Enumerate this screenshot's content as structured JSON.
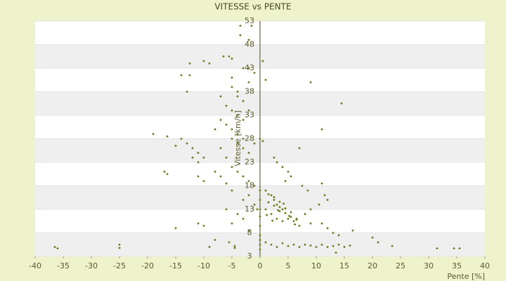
{
  "chart_data": {
    "type": "scatter",
    "title": "VITESSE vs PENTE",
    "x_label": "Pente [%]",
    "y_label": "Vitesse [km/h]",
    "color": "#6b7a1a",
    "grid": true,
    "xlim": [
      -40,
      40
    ],
    "xticks": [
      -40,
      -35,
      -30,
      -25,
      -20,
      -15,
      -10,
      -5,
      0,
      5,
      10,
      15,
      20,
      25,
      30,
      35,
      40
    ],
    "ylim": [
      3,
      53
    ],
    "yticks": [
      3,
      8,
      13,
      18,
      23,
      28,
      33,
      38,
      43,
      48,
      53
    ],
    "x": [
      -36.5,
      -36,
      -25,
      -25,
      -15,
      -10,
      -9,
      -5,
      -4.5,
      -4.5,
      -3,
      -2,
      -3.5,
      -3.5,
      -1.5,
      -2,
      -6.5,
      -5.5,
      -5,
      -10,
      -12.5,
      -14,
      -12.5,
      -9,
      -3,
      -2,
      -1,
      -13,
      -7,
      -5,
      -5,
      -4,
      -6,
      -5,
      -4,
      -3,
      -6,
      -5,
      -4,
      -3,
      0.5,
      1,
      9,
      14.5,
      11,
      -19,
      -16.5,
      -14,
      -13,
      -15,
      -12,
      -11,
      -12,
      -11,
      -10,
      -17,
      -16.5,
      -11,
      -10,
      -8,
      -7,
      -6,
      -5,
      -4,
      -3,
      -2,
      -1,
      -2,
      -1,
      -3,
      -4,
      -5,
      0,
      0.5,
      7,
      2.5,
      3,
      4,
      5,
      5.5,
      4.5,
      7.5,
      8.5,
      11,
      11.5,
      12,
      10.5,
      9,
      8,
      1,
      2,
      2.5,
      3,
      3.5,
      4,
      2,
      3,
      4,
      5,
      6,
      7,
      9,
      11,
      12,
      13,
      14,
      16.5,
      20,
      21,
      23.5,
      16,
      15,
      14,
      13,
      12,
      11,
      10,
      9,
      8,
      7,
      6,
      5,
      4,
      3,
      2,
      1,
      0,
      0,
      0,
      0,
      0,
      0,
      0,
      0,
      -0.5,
      -1,
      1,
      13.5,
      31.5,
      34.5,
      35.5,
      -5.5,
      -8,
      -11,
      -6,
      -4,
      -3,
      -2,
      -5,
      -6,
      -7,
      -8,
      -7,
      -2,
      -3,
      -4,
      -2,
      0,
      1.5,
      2.5,
      3.5,
      4.5,
      5.5,
      6.5,
      1.5,
      2.5,
      3.5,
      4.5,
      5.5,
      6.5,
      1.2,
      2.2,
      3.2,
      4.2,
      5.2,
      6.2
    ],
    "y": [
      5,
      4.7,
      5.5,
      4.8,
      9,
      9.5,
      5,
      10,
      5.2,
      4.8,
      11,
      8.5,
      52,
      50,
      52,
      49,
      45.5,
      45.5,
      45,
      44.5,
      44,
      41.5,
      41.5,
      44,
      43,
      43,
      42,
      38,
      37,
      41,
      39,
      37,
      35,
      34,
      33,
      32,
      31,
      30,
      29,
      28,
      44.5,
      40.5,
      40,
      35.5,
      30,
      29,
      28.5,
      28,
      27,
      26.5,
      26,
      25,
      24,
      23,
      24,
      21,
      20.5,
      20,
      19,
      21,
      20,
      18.5,
      22,
      21,
      20,
      19,
      18,
      25,
      27,
      26,
      27,
      28,
      28,
      27.5,
      26,
      24,
      23,
      22,
      21,
      20,
      19,
      18,
      17,
      18.5,
      16,
      15,
      14,
      13,
      12,
      17,
      16,
      15,
      14,
      13.5,
      13,
      12,
      11,
      10.5,
      11,
      10.5,
      9.5,
      10,
      10,
      9,
      8,
      7.5,
      8.5,
      7,
      6,
      5.2,
      5.3,
      5,
      5.5,
      5.2,
      5,
      5.5,
      5,
      5.3,
      5.5,
      5,
      5.5,
      5.2,
      5.8,
      5,
      5.5,
      6,
      5.5,
      6.5,
      7.5,
      9.5,
      11.5,
      13,
      15,
      17,
      13,
      14,
      13,
      3.8,
      4.7,
      4.7,
      4.7,
      6,
      6.5,
      10,
      13,
      12,
      15,
      16,
      17,
      24,
      26,
      30,
      32,
      34,
      36,
      38,
      40,
      4.5,
      14.5,
      13.8,
      12.6,
      12.2,
      11.4,
      11,
      16.2,
      15.6,
      14.6,
      13.2,
      12.4,
      10.8,
      11.8,
      10.6,
      12.8,
      14.2,
      11.6,
      9.8
    ]
  }
}
